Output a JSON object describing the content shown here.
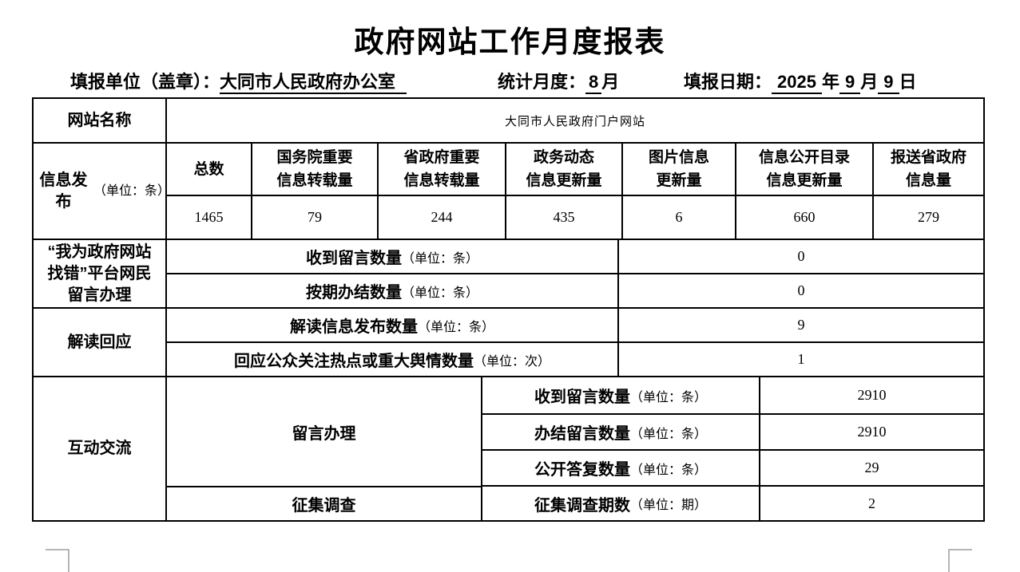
{
  "title": "政府网站工作月度报表",
  "meta": {
    "unit_label": "填报单位（盖章）：",
    "unit_value": "大同市人民政府办公室",
    "month_label": "统计月度：",
    "month_value": "8",
    "month_unit": "月",
    "date_label": "填报日期：",
    "year_value": "2025",
    "year_unit": "年",
    "report_month_value": "9",
    "report_month_unit": "月",
    "day_value": "9",
    "day_unit": "日"
  },
  "table": {
    "site_name": {
      "label": "网站名称",
      "value": "大同市人民政府门户网站"
    },
    "info_release": {
      "label": "信息发布",
      "unit": "（单位：条）",
      "columns": [
        {
          "header": "总数",
          "value": "1465"
        },
        {
          "header": "国务院重要\n信息转载量",
          "value": "79"
        },
        {
          "header": "省政府重要\n信息转载量",
          "value": "244"
        },
        {
          "header": "政务动态\n信息更新量",
          "value": "435"
        },
        {
          "header": "图片信息\n更新量",
          "value": "6"
        },
        {
          "header": "信息公开目录\n信息更新量",
          "value": "660"
        },
        {
          "header": "报送省政府\n信息量",
          "value": "279"
        }
      ]
    },
    "error_platform": {
      "label": "“我为政府网站\n找错”平台网民\n留言办理",
      "rows": [
        {
          "label": "收到留言数量",
          "unit": "（单位：条）",
          "value": "0"
        },
        {
          "label": "按期办结数量",
          "unit": "（单位：条）",
          "value": "0"
        }
      ]
    },
    "interpretation": {
      "label": "解读回应",
      "rows": [
        {
          "label": "解读信息发布数量",
          "unit": "（单位：条）",
          "value": "9"
        },
        {
          "label": "回应公众关注热点或重大舆情数量",
          "unit": "（单位：次）",
          "value": "1"
        }
      ]
    },
    "interaction": {
      "label": "互动交流",
      "groups": [
        {
          "label": "留言办理",
          "rows": [
            {
              "label": "收到留言数量",
              "unit": "（单位：条）",
              "value": "2910"
            },
            {
              "label": "办结留言数量",
              "unit": "（单位：条）",
              "value": "2910"
            },
            {
              "label": "公开答复数量",
              "unit": "（单位：条）",
              "value": "29"
            }
          ]
        },
        {
          "label": "征集调查",
          "rows": [
            {
              "label": "征集调查期数",
              "unit": "（单位：期）",
              "value": "2"
            }
          ]
        }
      ]
    }
  }
}
